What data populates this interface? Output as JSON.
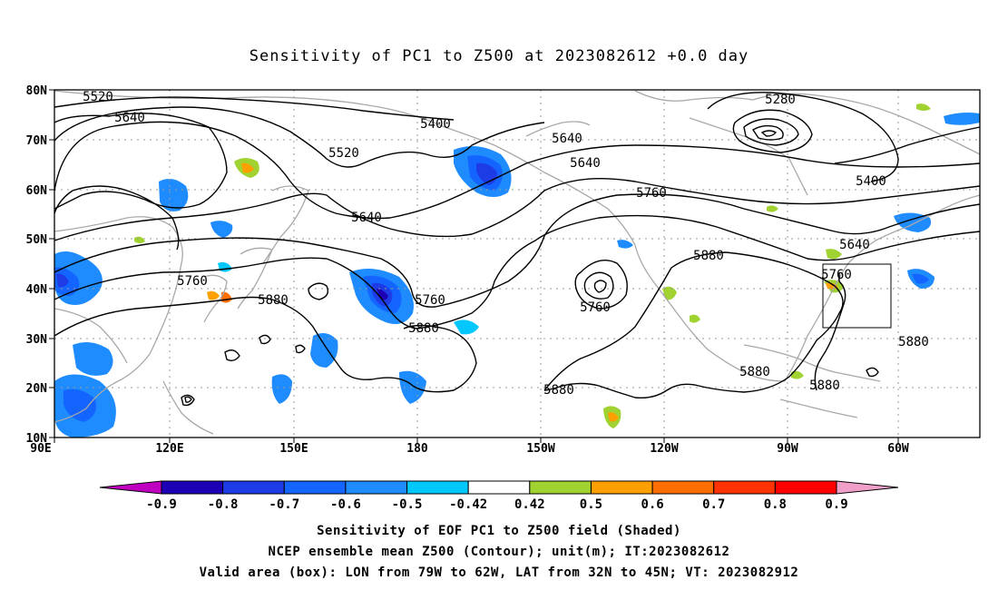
{
  "title": "Sensitivity of PC1 to Z500 at 2023082612 +0.0 day",
  "map": {
    "lat_labels": [
      "80N",
      "70N",
      "60N",
      "50N",
      "40N",
      "30N",
      "20N",
      "10N"
    ],
    "lon_labels": [
      "90E",
      "120E",
      "150E",
      "180",
      "150W",
      "120W",
      "90W",
      "60W"
    ],
    "contour_labels": [
      "5520",
      "5640",
      "5400",
      "5520",
      "5280",
      "5640",
      "5760",
      "5400",
      "5640",
      "5640",
      "5760",
      "5760",
      "5880",
      "5880",
      "5760",
      "5880",
      "5880",
      "5880",
      "5880",
      "5880",
      "5760",
      "5640"
    ],
    "valid_box": {
      "lon_from": "79W",
      "lon_to": "62W",
      "lat_from": "32N",
      "lat_to": "45N"
    }
  },
  "colorbar": {
    "labels": [
      "-0.9",
      "-0.8",
      "-0.7",
      "-0.6",
      "-0.5",
      "-0.42",
      "0.42",
      "0.5",
      "0.6",
      "0.7",
      "0.8",
      "0.9"
    ],
    "colors": [
      "#c000c0",
      "#1e00b4",
      "#1e3ce6",
      "#1464ff",
      "#1e8cff",
      "#00c8ff",
      "#ffffff",
      "#a0d232",
      "#ffa000",
      "#ff6e00",
      "#ff3200",
      "#ff0000",
      "#f0a0c8"
    ]
  },
  "caption": {
    "line1": "Sensitivity of EOF PC1 to Z500 field (Shaded)",
    "line2": "NCEP ensemble mean Z500 (Contour); unit(m); IT:2023082612",
    "line3": "Valid area (box): LON from 79W to 62W, LAT from 32N to 45N; VT: 2023082912"
  }
}
